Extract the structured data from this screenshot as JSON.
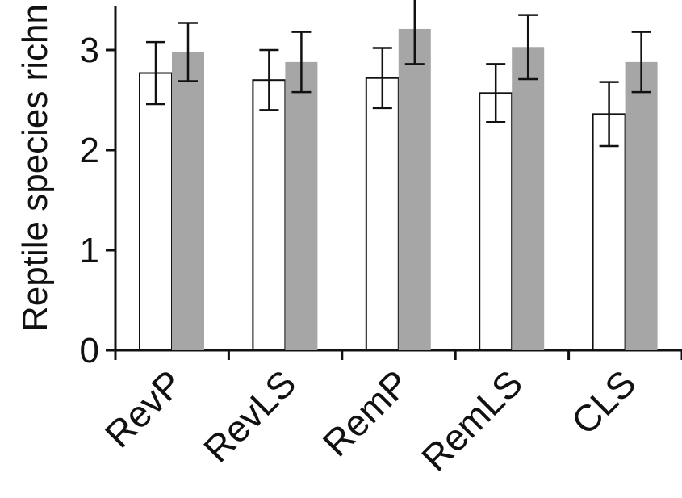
{
  "chart_data": {
    "type": "bar",
    "title": "",
    "xlabel": "",
    "ylabel": "Reptile species richn",
    "ylim": [
      0,
      3.5
    ],
    "yticks": [
      0,
      1,
      2,
      3
    ],
    "categories": [
      "RevP",
      "RevLS",
      "RemP",
      "RemLS",
      "CLS"
    ],
    "series": [
      {
        "color": "#ffffff",
        "values": [
          2.77,
          2.7,
          2.72,
          2.57,
          2.36
        ],
        "errors": [
          0.31,
          0.3,
          0.3,
          0.29,
          0.32
        ]
      },
      {
        "color": "#a6a6a6",
        "values": [
          2.98,
          2.88,
          3.21,
          3.03,
          2.88
        ],
        "errors": [
          0.29,
          0.3,
          0.35,
          0.32,
          0.3
        ]
      }
    ],
    "grid": false,
    "legend": "none"
  }
}
